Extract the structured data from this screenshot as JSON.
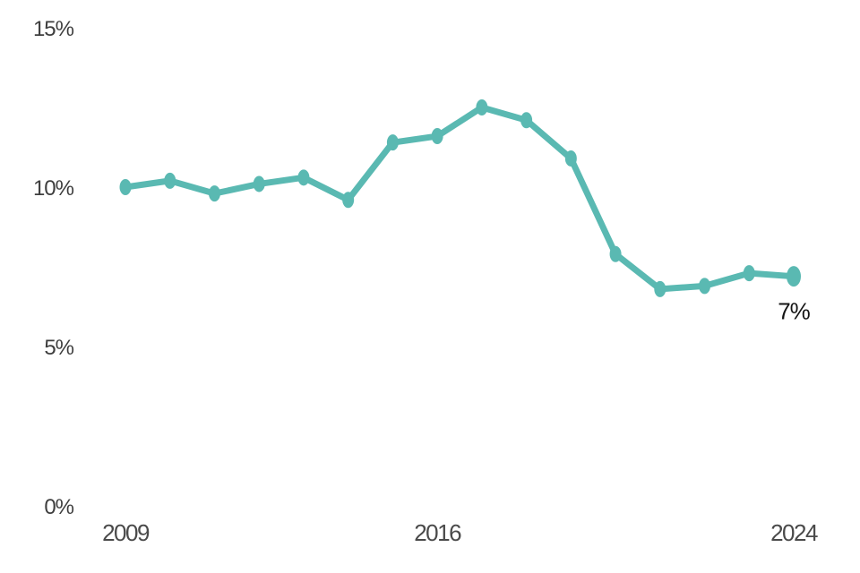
{
  "chart_data": {
    "type": "line",
    "x": [
      2009,
      2010,
      2011,
      2012,
      2013,
      2014,
      2015,
      2016,
      2017,
      2018,
      2019,
      2020,
      2021,
      2022,
      2023,
      2024
    ],
    "values": [
      10.0,
      10.2,
      9.8,
      10.1,
      10.3,
      9.6,
      11.4,
      11.6,
      12.5,
      12.1,
      10.9,
      7.9,
      6.8,
      6.9,
      7.3,
      7.2
    ],
    "title": "",
    "xlabel": "",
    "ylabel": "",
    "ylim": [
      0,
      15
    ],
    "yticks": [
      0,
      5,
      10,
      15
    ],
    "ytick_labels": [
      "0%",
      "5%",
      "10%",
      "15%"
    ],
    "xticks": [
      2009,
      2016,
      2024
    ],
    "xtick_labels": [
      "2009",
      "2016",
      "2024"
    ],
    "grid": false,
    "axis_lines": false,
    "legend": "none",
    "line_color": "#5ab9b2",
    "marker_color": "#5ab9b2",
    "text_color": "#3e3e3e",
    "end_label": "7%",
    "end_label_color": "#141414",
    "background_color": "#ffffff"
  }
}
